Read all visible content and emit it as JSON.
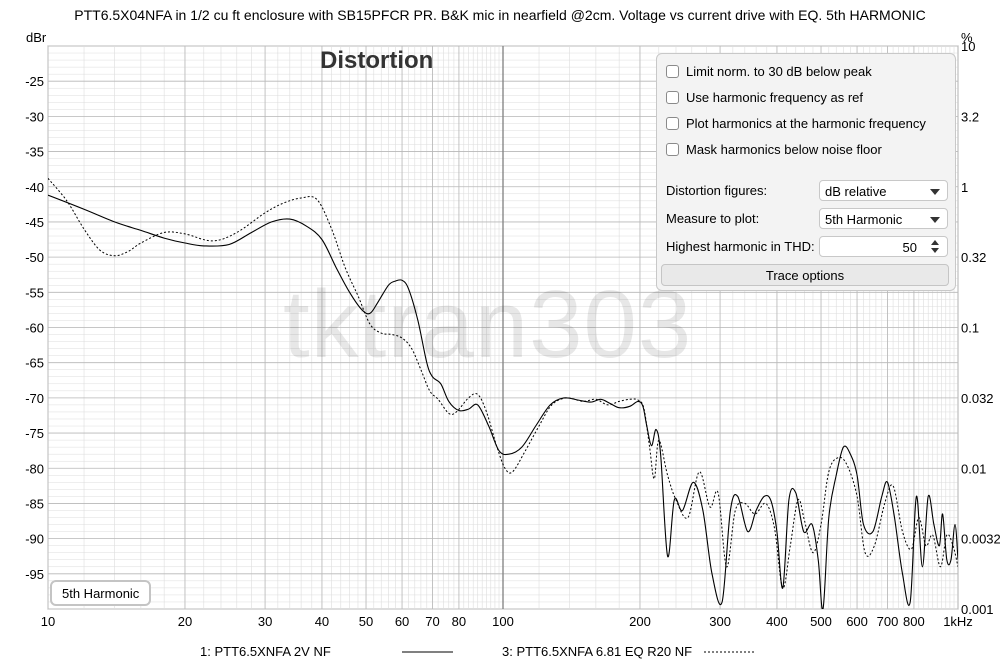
{
  "header": {
    "title": "PTT6.5X04NFA in 1/2 cu ft enclosure with SB15PFCR PR. B&K mic in nearfield @2cm. Voltage vs current drive with EQ. 5th HARMONIC",
    "plot_title": "Distortion",
    "left_unit": "dBr",
    "right_unit": "%",
    "watermark": "tktran303"
  },
  "panel": {
    "checkboxes": [
      {
        "label": "Limit norm. to 30 dB below peak",
        "checked": false
      },
      {
        "label": "Use harmonic frequency as ref",
        "checked": false
      },
      {
        "label": "Plot harmonics at the harmonic frequency",
        "checked": false
      },
      {
        "label": "Mask harmonics below noise floor",
        "checked": false
      }
    ],
    "distortion_figures_label": "Distortion figures:",
    "distortion_figures_value": "dB relative",
    "measure_label": "Measure to plot:",
    "measure_value": "5th Harmonic",
    "highest_label": "Highest harmonic in THD:",
    "highest_value": "50",
    "trace_button": "Trace options"
  },
  "badge": "5th Harmonic",
  "colors": {
    "grid": "#dddddd",
    "major_grid": "#b8b8b8",
    "trace": "#000000"
  },
  "chart_data": {
    "type": "line",
    "title": "Distortion",
    "ylabel": "dBr",
    "y2label": "%",
    "xscale": "log",
    "xlim": [
      10,
      1000
    ],
    "ylim": [
      -100,
      -20
    ],
    "y_ticks": [
      -25,
      -30,
      -35,
      -40,
      -45,
      -50,
      -55,
      -60,
      -65,
      -70,
      -75,
      -80,
      -85,
      -90,
      -95
    ],
    "y2_ticks": [
      "10",
      "3.2",
      "1",
      "0.32",
      "0.1",
      "0.032",
      "0.01",
      "0.0032",
      "0.001"
    ],
    "x_ticks": [
      {
        "v": 10,
        "label": "10"
      },
      {
        "v": 20,
        "label": "20"
      },
      {
        "v": 30,
        "label": "30"
      },
      {
        "v": 40,
        "label": "40"
      },
      {
        "v": 50,
        "label": "50"
      },
      {
        "v": 60,
        "label": "60"
      },
      {
        "v": 70,
        "label": "70"
      },
      {
        "v": 80,
        "label": "80"
      },
      {
        "v": 100,
        "label": "100"
      },
      {
        "v": 200,
        "label": "200"
      },
      {
        "v": 300,
        "label": "300"
      },
      {
        "v": 400,
        "label": "400"
      },
      {
        "v": 500,
        "label": "500"
      },
      {
        "v": 600,
        "label": "600"
      },
      {
        "v": 700,
        "label": "700"
      },
      {
        "v": 800,
        "label": "800"
      },
      {
        "v": 1000,
        "label": "1kHz"
      }
    ],
    "series": [
      {
        "name": "1: PTT6.5XNFA 2V NF",
        "style": "solid",
        "points": [
          [
            10,
            -41.2
          ],
          [
            12,
            -43.2
          ],
          [
            14,
            -45
          ],
          [
            16,
            -46.2
          ],
          [
            18,
            -47.3
          ],
          [
            20,
            -48
          ],
          [
            22,
            -48.4
          ],
          [
            25,
            -48.2
          ],
          [
            28,
            -46.5
          ],
          [
            31,
            -45
          ],
          [
            34,
            -44.6
          ],
          [
            37,
            -45.6
          ],
          [
            40,
            -47.5
          ],
          [
            43,
            -51.5
          ],
          [
            46,
            -55
          ],
          [
            49,
            -57.5
          ],
          [
            51,
            -58
          ],
          [
            53,
            -56.5
          ],
          [
            56,
            -54
          ],
          [
            58,
            -53.4
          ],
          [
            60,
            -53.3
          ],
          [
            62,
            -54.5
          ],
          [
            65,
            -59
          ],
          [
            68,
            -65
          ],
          [
            70,
            -67
          ],
          [
            73,
            -68
          ],
          [
            76,
            -70.5
          ],
          [
            80,
            -71.8
          ],
          [
            84,
            -71.6
          ],
          [
            88,
            -71
          ],
          [
            93,
            -74
          ],
          [
            98,
            -77.5
          ],
          [
            103,
            -78
          ],
          [
            110,
            -77
          ],
          [
            118,
            -74
          ],
          [
            127,
            -71
          ],
          [
            136,
            -70
          ],
          [
            146,
            -70.3
          ],
          [
            156,
            -70.6
          ],
          [
            164,
            -70.2
          ],
          [
            172,
            -70.8
          ],
          [
            180,
            -71.4
          ],
          [
            190,
            -71.2
          ],
          [
            198,
            -70.5
          ],
          [
            203,
            -71.2
          ],
          [
            207,
            -74
          ],
          [
            212,
            -76.8
          ],
          [
            217,
            -74.5
          ],
          [
            222,
            -78
          ],
          [
            230,
            -92.5
          ],
          [
            238,
            -84.5
          ],
          [
            248,
            -86
          ],
          [
            262,
            -82
          ],
          [
            275,
            -86
          ],
          [
            288,
            -95
          ],
          [
            303,
            -99
          ],
          [
            316,
            -86
          ],
          [
            328,
            -84
          ],
          [
            345,
            -89
          ],
          [
            360,
            -86
          ],
          [
            375,
            -84
          ],
          [
            388,
            -84.6
          ],
          [
            400,
            -89
          ],
          [
            412,
            -97
          ],
          [
            425,
            -84.5
          ],
          [
            440,
            -83.5
          ],
          [
            458,
            -89
          ],
          [
            478,
            -88
          ],
          [
            493,
            -93
          ],
          [
            505,
            -100
          ],
          [
            520,
            -87
          ],
          [
            540,
            -81
          ],
          [
            560,
            -77
          ],
          [
            580,
            -78
          ],
          [
            600,
            -81
          ],
          [
            620,
            -88
          ],
          [
            650,
            -89
          ],
          [
            680,
            -84
          ],
          [
            700,
            -82
          ],
          [
            725,
            -87
          ],
          [
            755,
            -95
          ],
          [
            785,
            -99
          ],
          [
            810,
            -84
          ],
          [
            835,
            -94
          ],
          [
            860,
            -84
          ],
          [
            885,
            -88
          ],
          [
            910,
            -91
          ],
          [
            925,
            -86.5
          ],
          [
            945,
            -93
          ],
          [
            965,
            -93
          ],
          [
            985,
            -88
          ],
          [
            1000,
            -93
          ]
        ]
      },
      {
        "name": "3: PTT6.5XNFA 6.81 EQ R20 NF",
        "style": "dotted",
        "points": [
          [
            10,
            -38.8
          ],
          [
            11,
            -42
          ],
          [
            12,
            -46
          ],
          [
            13,
            -49
          ],
          [
            14,
            -49.8
          ],
          [
            15,
            -49.2
          ],
          [
            16,
            -48
          ],
          [
            18,
            -46.5
          ],
          [
            20,
            -46.7
          ],
          [
            23,
            -47.7
          ],
          [
            26,
            -46.5
          ],
          [
            30,
            -43.7
          ],
          [
            33,
            -42.3
          ],
          [
            36,
            -41.6
          ],
          [
            39,
            -41.8
          ],
          [
            42,
            -46
          ],
          [
            45,
            -51.5
          ],
          [
            48,
            -55.5
          ],
          [
            51,
            -59.5
          ],
          [
            54,
            -60.8
          ],
          [
            57,
            -61
          ],
          [
            60,
            -61.5
          ],
          [
            63,
            -63
          ],
          [
            66,
            -66
          ],
          [
            69,
            -69
          ],
          [
            72,
            -70.2
          ],
          [
            76,
            -72.2
          ],
          [
            79,
            -72
          ],
          [
            84,
            -70
          ],
          [
            88,
            -69.5
          ],
          [
            92,
            -72
          ],
          [
            97,
            -77
          ],
          [
            101,
            -80
          ],
          [
            105,
            -80.5
          ],
          [
            112,
            -77.5
          ],
          [
            120,
            -74
          ],
          [
            128,
            -71
          ],
          [
            138,
            -70
          ],
          [
            150,
            -70.5
          ],
          [
            160,
            -70.2
          ],
          [
            170,
            -71
          ],
          [
            180,
            -70.5
          ],
          [
            190,
            -70.2
          ],
          [
            198,
            -70.3
          ],
          [
            204,
            -71.5
          ],
          [
            210,
            -77
          ],
          [
            215,
            -81.5
          ],
          [
            220,
            -76
          ],
          [
            230,
            -81
          ],
          [
            240,
            -84.5
          ],
          [
            255,
            -87
          ],
          [
            270,
            -80.5
          ],
          [
            285,
            -85.5
          ],
          [
            297,
            -83.5
          ],
          [
            310,
            -94
          ],
          [
            324,
            -86
          ],
          [
            340,
            -85
          ],
          [
            358,
            -86.5
          ],
          [
            378,
            -85
          ],
          [
            395,
            -88.5
          ],
          [
            412,
            -97
          ],
          [
            428,
            -91
          ],
          [
            445,
            -84.5
          ],
          [
            460,
            -87.5
          ],
          [
            480,
            -92
          ],
          [
            500,
            -88
          ],
          [
            520,
            -80.5
          ],
          [
            545,
            -78.5
          ],
          [
            570,
            -79.5
          ],
          [
            600,
            -84
          ],
          [
            625,
            -92
          ],
          [
            655,
            -91
          ],
          [
            690,
            -85
          ],
          [
            720,
            -82.5
          ],
          [
            755,
            -89
          ],
          [
            790,
            -91.5
          ],
          [
            820,
            -87
          ],
          [
            850,
            -91
          ],
          [
            880,
            -89.5
          ],
          [
            915,
            -94
          ],
          [
            945,
            -89.5
          ],
          [
            975,
            -91
          ],
          [
            1000,
            -94
          ]
        ]
      }
    ]
  }
}
